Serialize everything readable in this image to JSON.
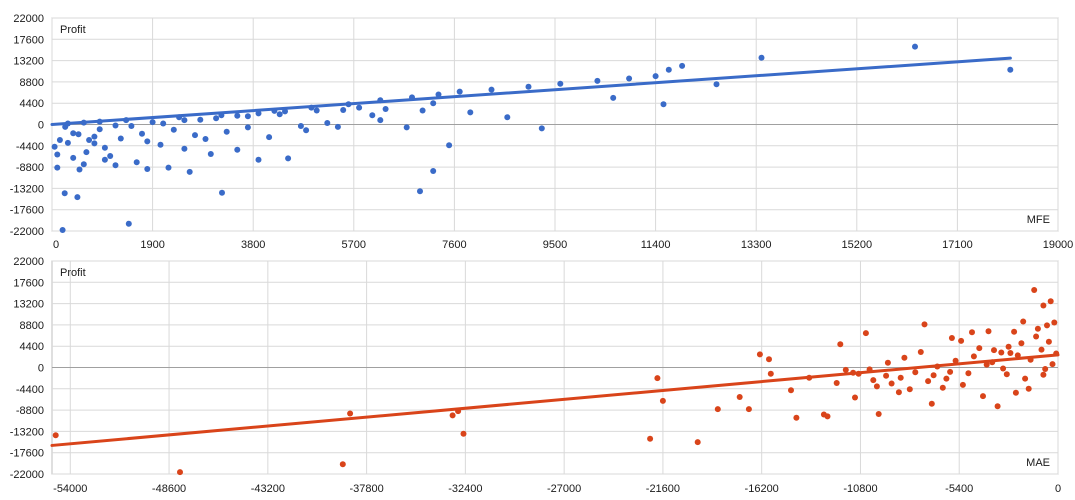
{
  "colors": {
    "mfe_series": "#3a6bc8",
    "mae_series": "#d9441a",
    "grid": "#d9d9d9",
    "frame": "#bfbfbf",
    "zero_line": "#a0a0a0"
  },
  "chart_data": [
    {
      "type": "scatter",
      "ylabel": "Profit",
      "xlabel": "MFE",
      "xlim": [
        0,
        19000
      ],
      "ylim": [
        -22000,
        22000
      ],
      "x_ticks": [
        0,
        1900,
        3800,
        5700,
        7600,
        9500,
        11400,
        13300,
        15200,
        17100,
        19000
      ],
      "y_ticks": [
        22000,
        17600,
        13200,
        8800,
        4400,
        0,
        -4400,
        -8800,
        -13200,
        -17600,
        -22000
      ],
      "grid": true,
      "trend_line": {
        "x": [
          0,
          18100
        ],
        "y": [
          0,
          13700
        ]
      },
      "series": [
        {
          "color": "mfe_series",
          "points": [
            [
              200,
              -21800
            ],
            [
              1450,
              -20500
            ],
            [
              480,
              -15000
            ],
            [
              240,
              -14200
            ],
            [
              3210,
              -14100
            ],
            [
              6950,
              -13800
            ],
            [
              7200,
              -9600
            ],
            [
              100,
              -8900
            ],
            [
              520,
              -9300
            ],
            [
              1800,
              -9200
            ],
            [
              2600,
              -9800
            ],
            [
              2200,
              -8900
            ],
            [
              1200,
              -8400
            ],
            [
              600,
              -8200
            ],
            [
              1600,
              -7800
            ],
            [
              3900,
              -7300
            ],
            [
              4460,
              -7000
            ],
            [
              7500,
              -4300
            ],
            [
              9250,
              -800
            ],
            [
              3000,
              -6100
            ],
            [
              2500,
              -5000
            ],
            [
              1000,
              -4800
            ],
            [
              800,
              -3900
            ],
            [
              300,
              -3800
            ],
            [
              150,
              -3200
            ],
            [
              650,
              -5700
            ],
            [
              1100,
              -6500
            ],
            [
              2050,
              -4200
            ],
            [
              4800,
              -1200
            ],
            [
              5400,
              -500
            ],
            [
              6200,
              900
            ],
            [
              7000,
              2900
            ],
            [
              6300,
              3200
            ],
            [
              5800,
              3500
            ],
            [
              4100,
              -2600
            ],
            [
              3300,
              -1500
            ],
            [
              2700,
              -2200
            ],
            [
              1300,
              -2900
            ],
            [
              400,
              -1800
            ],
            [
              900,
              -1000
            ],
            [
              1500,
              -300
            ],
            [
              2100,
              200
            ],
            [
              2800,
              1000
            ],
            [
              3500,
              1800
            ],
            [
              4200,
              2800
            ],
            [
              4900,
              3500
            ],
            [
              5600,
              4200
            ],
            [
              6200,
              5000
            ],
            [
              6800,
              5600
            ],
            [
              7300,
              6200
            ],
            [
              7700,
              6800
            ],
            [
              8300,
              7200
            ],
            [
              9000,
              7800
            ],
            [
              9600,
              8400
            ],
            [
              10300,
              9000
            ],
            [
              10900,
              9500
            ],
            [
              11400,
              10000
            ],
            [
              11650,
              11300
            ],
            [
              11900,
              12100
            ],
            [
              13400,
              13800
            ],
            [
              16300,
              16100
            ],
            [
              18100,
              11300
            ],
            [
              12550,
              8300
            ],
            [
              11550,
              4200
            ],
            [
              10600,
              5500
            ],
            [
              7200,
              4400
            ],
            [
              7900,
              2500
            ],
            [
              8600,
              1500
            ],
            [
              6700,
              -600
            ],
            [
              6050,
              1900
            ],
            [
              5200,
              300
            ],
            [
              4700,
              -300
            ],
            [
              3700,
              -600
            ],
            [
              2300,
              -1100
            ],
            [
              1700,
              -1900
            ],
            [
              800,
              -2500
            ],
            [
              250,
              -500
            ],
            [
              500,
              -2000
            ],
            [
              1200,
              -200
            ],
            [
              1900,
              500
            ],
            [
              2500,
              900
            ],
            [
              3100,
              1300
            ],
            [
              3700,
              1700
            ],
            [
              4300,
              2100
            ],
            [
              5000,
              2900
            ],
            [
              5500,
              3000
            ],
            [
              300,
              200
            ],
            [
              600,
              400
            ],
            [
              900,
              600
            ],
            [
              1400,
              900
            ],
            [
              2400,
              1500
            ],
            [
              3200,
              1900
            ],
            [
              3900,
              2300
            ],
            [
              4400,
              2700
            ],
            [
              700,
              -3200
            ],
            [
              1800,
              -3500
            ],
            [
              2900,
              -3000
            ],
            [
              100,
              -6200
            ],
            [
              50,
              -4600
            ],
            [
              400,
              -6900
            ],
            [
              1000,
              -7300
            ],
            [
              3500,
              -5200
            ]
          ]
        }
      ]
    },
    {
      "type": "scatter",
      "ylabel": "Profit",
      "xlabel": "MAE",
      "xlim": [
        -55000,
        0
      ],
      "ylim": [
        -22000,
        22000
      ],
      "x_ticks": [
        -54000,
        -48600,
        -43200,
        -37800,
        -32400,
        -27000,
        -21600,
        -16200,
        -10800,
        -5400,
        0
      ],
      "y_ticks": [
        22000,
        17600,
        13200,
        8800,
        4400,
        0,
        -4400,
        -8800,
        -13200,
        -17600,
        -22000
      ],
      "grid": true,
      "trend_line": {
        "x": [
          -55000,
          0
        ],
        "y": [
          -16100,
          2600
        ]
      },
      "series": [
        {
          "color": "mae_series",
          "points": [
            [
              -54800,
              -14000
            ],
            [
              -48000,
              -21600
            ],
            [
              -39100,
              -20000
            ],
            [
              -38700,
              -9500
            ],
            [
              -33100,
              -9900
            ],
            [
              -32800,
              -9000
            ],
            [
              -32500,
              -13700
            ],
            [
              -22300,
              -14700
            ],
            [
              -21900,
              -2200
            ],
            [
              -21600,
              -6900
            ],
            [
              -19700,
              -15400
            ],
            [
              -18600,
              -8600
            ],
            [
              -17400,
              -6100
            ],
            [
              -16900,
              -8600
            ],
            [
              -16300,
              2700
            ],
            [
              -15800,
              1700
            ],
            [
              -14300,
              -10400
            ],
            [
              -12800,
              -9700
            ],
            [
              -12600,
              -10100
            ],
            [
              -11900,
              4800
            ],
            [
              -11200,
              -1100
            ],
            [
              -10500,
              7100
            ],
            [
              -9800,
              -9600
            ],
            [
              -8700,
              -5100
            ],
            [
              -7300,
              8900
            ],
            [
              -6900,
              -7500
            ],
            [
              -6300,
              -4200
            ],
            [
              -5800,
              6100
            ],
            [
              -5300,
              5500
            ],
            [
              -4700,
              7300
            ],
            [
              -3800,
              7500
            ],
            [
              -3100,
              3100
            ],
            [
              -2600,
              3000
            ],
            [
              -1900,
              9500
            ],
            [
              -1300,
              16000
            ],
            [
              -800,
              12800
            ],
            [
              -400,
              13700
            ],
            [
              -200,
              9300
            ],
            [
              -1100,
              8000
            ],
            [
              -2400,
              7400
            ],
            [
              -3300,
              -8000
            ],
            [
              -4100,
              -5900
            ],
            [
              -5200,
              -3600
            ],
            [
              -6100,
              -2300
            ],
            [
              -7100,
              -2800
            ],
            [
              -8100,
              -4500
            ],
            [
              -9100,
              -3300
            ],
            [
              -10100,
              -2600
            ],
            [
              -11100,
              -6200
            ],
            [
              -12100,
              -3200
            ],
            [
              -13600,
              -2100
            ],
            [
              -14600,
              -4700
            ],
            [
              -15700,
              -1300
            ],
            [
              -6600,
              200
            ],
            [
              -5600,
              1400
            ],
            [
              -4600,
              2300
            ],
            [
              -3600,
              1100
            ],
            [
              -2800,
              -1400
            ],
            [
              -1800,
              -2300
            ],
            [
              -900,
              3700
            ],
            [
              -500,
              5300
            ],
            [
              -100,
              2900
            ],
            [
              -300,
              700
            ],
            [
              -700,
              -300
            ],
            [
              -1500,
              1600
            ],
            [
              -2200,
              2500
            ],
            [
              -3000,
              -200
            ],
            [
              -3900,
              600
            ],
            [
              -4900,
              -1200
            ],
            [
              -5900,
              -900
            ],
            [
              -6800,
              -1600
            ],
            [
              -7800,
              -1000
            ],
            [
              -8600,
              -2100
            ],
            [
              -9400,
              -1700
            ],
            [
              -10300,
              -400
            ],
            [
              -10900,
              -1300
            ],
            [
              -11600,
              -500
            ],
            [
              -2000,
              5000
            ],
            [
              -1200,
              6400
            ],
            [
              -600,
              8700
            ],
            [
              -2700,
              4300
            ],
            [
              -3500,
              3600
            ],
            [
              -4300,
              4000
            ],
            [
              -7500,
              3200
            ],
            [
              -8400,
              2000
            ],
            [
              -9300,
              1000
            ],
            [
              -9900,
              -3900
            ],
            [
              -2300,
              -5200
            ],
            [
              -1600,
              -4400
            ],
            [
              -800,
              -1500
            ]
          ]
        }
      ]
    }
  ]
}
